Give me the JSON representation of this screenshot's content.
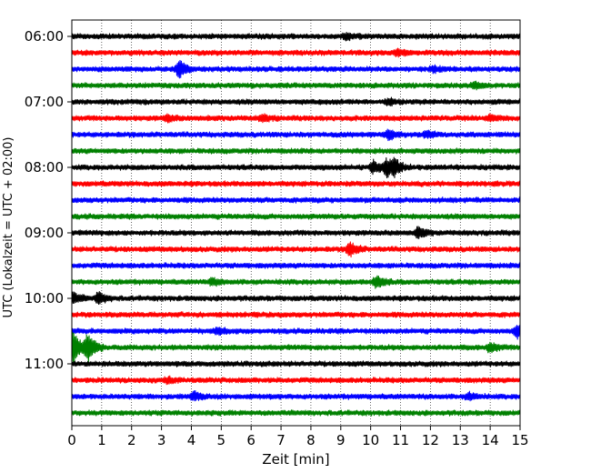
{
  "chart_data": {
    "type": "line",
    "title": "",
    "xlabel": "Zeit  [min]",
    "ylabel": "UTC (Lokalzeit = UTC + 02:00)",
    "xlim": [
      0,
      15
    ],
    "x_ticks": [
      "0",
      "1",
      "2",
      "3",
      "4",
      "5",
      "6",
      "7",
      "8",
      "9",
      "10",
      "11",
      "12",
      "13",
      "14",
      "15"
    ],
    "y_ticks": [
      "06:00",
      "07:00",
      "08:00",
      "09:00",
      "10:00",
      "11:00"
    ],
    "grid": "vertical dotted",
    "trace_colors": [
      "#000000",
      "#ff0000",
      "#0000ff",
      "#008000"
    ],
    "traces_per_hour": 4,
    "minutes_per_trace": 15,
    "series": [
      {
        "start": "06:00",
        "color": "#000000",
        "events": [
          {
            "t": 9.2,
            "amp": 0.35
          }
        ]
      },
      {
        "start": "06:15",
        "color": "#ff0000",
        "events": [
          {
            "t": 10.9,
            "amp": 0.3
          }
        ]
      },
      {
        "start": "06:30",
        "color": "#0000ff",
        "events": [
          {
            "t": 3.6,
            "amp": 1.0
          },
          {
            "t": 12.1,
            "amp": 0.3
          }
        ]
      },
      {
        "start": "06:45",
        "color": "#008000",
        "events": [
          {
            "t": 13.5,
            "amp": 0.35
          }
        ]
      },
      {
        "start": "07:00",
        "color": "#000000",
        "events": [
          {
            "t": 10.6,
            "amp": 0.35
          }
        ]
      },
      {
        "start": "07:15",
        "color": "#ff0000",
        "events": [
          {
            "t": 3.2,
            "amp": 0.35
          },
          {
            "t": 6.4,
            "amp": 0.35
          },
          {
            "t": 14.0,
            "amp": 0.35
          }
        ]
      },
      {
        "start": "07:30",
        "color": "#0000ff",
        "events": [
          {
            "t": 10.6,
            "amp": 0.55
          },
          {
            "t": 11.9,
            "amp": 0.35
          }
        ]
      },
      {
        "start": "07:45",
        "color": "#008000",
        "events": []
      },
      {
        "start": "08:00",
        "color": "#000000",
        "events": [
          {
            "t": 10.1,
            "amp": 0.7
          },
          {
            "t": 10.55,
            "amp": 1.0
          },
          {
            "t": 10.8,
            "amp": 0.7
          }
        ]
      },
      {
        "start": "08:15",
        "color": "#ff0000",
        "events": []
      },
      {
        "start": "08:30",
        "color": "#0000ff",
        "events": []
      },
      {
        "start": "08:45",
        "color": "#008000",
        "events": []
      },
      {
        "start": "09:00",
        "color": "#000000",
        "events": [
          {
            "t": 11.6,
            "amp": 0.55
          }
        ]
      },
      {
        "start": "09:15",
        "color": "#ff0000",
        "events": [
          {
            "t": 9.3,
            "amp": 0.8
          }
        ]
      },
      {
        "start": "09:30",
        "color": "#0000ff",
        "events": []
      },
      {
        "start": "09:45",
        "color": "#008000",
        "events": [
          {
            "t": 4.7,
            "amp": 0.35
          },
          {
            "t": 10.2,
            "amp": 0.7
          }
        ]
      },
      {
        "start": "10:00",
        "color": "#000000",
        "events": [
          {
            "t": 0.0,
            "amp": 0.7
          },
          {
            "t": 0.9,
            "amp": 0.65
          }
        ]
      },
      {
        "start": "10:15",
        "color": "#ff0000",
        "events": []
      },
      {
        "start": "10:30",
        "color": "#0000ff",
        "events": [
          {
            "t": 4.9,
            "amp": 0.35
          },
          {
            "t": 14.9,
            "amp": 0.7
          }
        ]
      },
      {
        "start": "10:45",
        "color": "#008000",
        "events": [
          {
            "t": 0.05,
            "amp": 2.0
          },
          {
            "t": 0.55,
            "amp": 1.6
          },
          {
            "t": 14.0,
            "amp": 0.5
          }
        ]
      },
      {
        "start": "11:00",
        "color": "#000000",
        "events": []
      },
      {
        "start": "11:15",
        "color": "#ff0000",
        "events": [
          {
            "t": 3.2,
            "amp": 0.3
          }
        ]
      },
      {
        "start": "11:30",
        "color": "#0000ff",
        "events": [
          {
            "t": 4.1,
            "amp": 0.45
          },
          {
            "t": 13.3,
            "amp": 0.35
          }
        ]
      },
      {
        "start": "11:45",
        "color": "#008000",
        "events": []
      }
    ]
  }
}
